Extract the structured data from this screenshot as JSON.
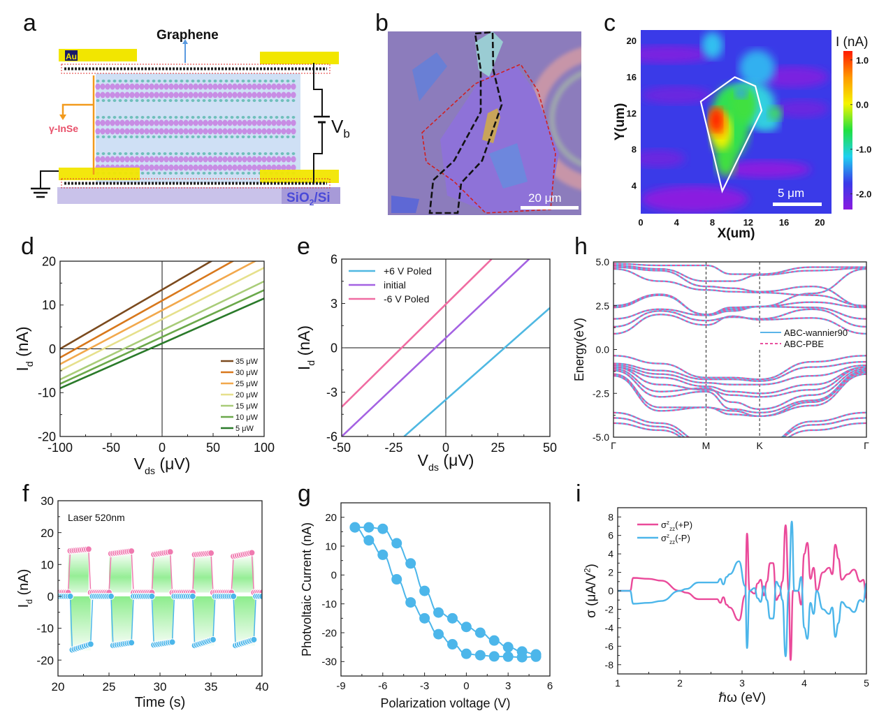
{
  "panel_letters": {
    "a": "a",
    "b": "b",
    "c": "c",
    "d": "d",
    "e": "e",
    "f": "f",
    "g": "g",
    "h": "h",
    "i": "i"
  },
  "panel_a": {
    "graphene_label": "Graphene",
    "au_label": "Au",
    "inse_label": "γ-InSe",
    "vb_label": {
      "main": "V",
      "sub": "b"
    },
    "substrate_label": {
      "a": "SiO",
      "sub": "2",
      "b": "/Si"
    },
    "colors": {
      "gold": "#f2e600",
      "crystal": "#cfe0f5",
      "in_atom": "#c77ee0",
      "se_atom": "#5fb8b0",
      "substrate": "#c9c2ea",
      "arrow_orange": "#f29a1c",
      "inse_text": "#e8506a"
    }
  },
  "panel_b": {
    "scale_bar_label": "20 μm",
    "colors": {
      "substrate": "#8c7cbc",
      "flake": "#8f72d6",
      "outline_red": "#d02020",
      "outline_black": "#111111"
    }
  },
  "chart_data": [
    {
      "id": "c",
      "type": "heatmap",
      "xlabel": "X(um)",
      "ylabel": "Y(um)",
      "xlim": [
        0,
        21.3
      ],
      "ylim": [
        0.9,
        21.2
      ],
      "xticks": [
        0,
        4,
        8,
        12,
        16,
        20
      ],
      "yticks": [
        4,
        8,
        12,
        16,
        20
      ],
      "colorbar": {
        "title": "I (nA)",
        "range": [
          -2.35,
          1.2
        ],
        "ticks": [
          1.0,
          0.0,
          -1.0,
          -2.0
        ],
        "colors": [
          "#ff1a00",
          "#ff9a00",
          "#f5f500",
          "#20e040",
          "#20d0f0",
          "#3a3ae8",
          "#8a1ae0"
        ]
      },
      "outline_um": [
        [
          6.7,
          13.3
        ],
        [
          10.5,
          16
        ],
        [
          12.8,
          15
        ],
        [
          13.5,
          12.3
        ],
        [
          9.1,
          3.4
        ]
      ],
      "scale_bar_label": "5 μm"
    },
    {
      "id": "d",
      "type": "line",
      "xlabel": [
        {
          "t": "V"
        },
        {
          "t": "ds",
          "sub": true
        },
        {
          "t": " (μV)"
        }
      ],
      "ylabel": [
        {
          "t": "I"
        },
        {
          "t": "d",
          "sub": true
        },
        {
          "t": " (nA)"
        }
      ],
      "xlim": [
        -100,
        100
      ],
      "ylim": [
        -20,
        20
      ],
      "xticks": [
        -100,
        -50,
        0,
        50,
        100
      ],
      "yticks": [
        -20,
        -10,
        0,
        10,
        20
      ],
      "legend_position": "bottom-right",
      "series": [
        {
          "name": "35 μW",
          "color": "#7b4a1e",
          "x": [
            -100,
            100
          ],
          "y": [
            0,
            27
          ]
        },
        {
          "name": "30 μW",
          "color": "#d8781c",
          "x": [
            -100,
            100
          ],
          "y": [
            -2,
            24
          ]
        },
        {
          "name": "25 μW",
          "color": "#f2a84c",
          "x": [
            -100,
            100
          ],
          "y": [
            -3.5,
            21.1
          ]
        },
        {
          "name": "20 μW",
          "color": "#e6e08c",
          "x": [
            -100,
            100
          ],
          "y": [
            -5,
            18.5
          ]
        },
        {
          "name": "15 μW",
          "color": "#a8cc78",
          "x": [
            -100,
            100
          ],
          "y": [
            -7,
            15.4
          ]
        },
        {
          "name": "10  μW",
          "color": "#6aa84a",
          "x": [
            -100,
            100
          ],
          "y": [
            -8,
            13.4
          ]
        },
        {
          "name": "5  μW",
          "color": "#2a7a2a",
          "x": [
            -100,
            100
          ],
          "y": [
            -9,
            11.5
          ]
        }
      ]
    },
    {
      "id": "e",
      "type": "line",
      "xlabel": [
        {
          "t": "V"
        },
        {
          "t": "ds",
          "sub": true
        },
        {
          "t": " (μV)"
        }
      ],
      "ylabel": [
        {
          "t": "I"
        },
        {
          "t": "d",
          "sub": true
        },
        {
          "t": " (nA)"
        }
      ],
      "xlim": [
        -50,
        50
      ],
      "ylim": [
        -6,
        6
      ],
      "xticks": [
        -50,
        -25,
        0,
        25,
        50
      ],
      "yticks": [
        -6,
        -3,
        0,
        3,
        6
      ],
      "legend_position": "top-left",
      "series": [
        {
          "name": "+6 V Poled",
          "color": "#4fb8e2",
          "x": [
            -20,
            50
          ],
          "y": [
            -6,
            2.7
          ]
        },
        {
          "name": "initial",
          "color": "#a462e2",
          "x": [
            -50,
            40
          ],
          "y": [
            -6,
            6
          ]
        },
        {
          "name": "-6 V Poled",
          "color": "#f06ca2",
          "x": [
            -50,
            22
          ],
          "y": [
            -4,
            6
          ]
        }
      ]
    },
    {
      "id": "h",
      "type": "line",
      "ylabel": [
        {
          "t": "Energy(eV)"
        }
      ],
      "xlim": [
        0,
        1.577
      ],
      "ylim": [
        -5,
        5
      ],
      "yticks": [
        -5,
        -2.5,
        0,
        2.5,
        5
      ],
      "kpoints": [
        {
          "label": "Γ",
          "k": 0
        },
        {
          "label": "M",
          "k": 0.577
        },
        {
          "label": "K",
          "k": 0.911
        },
        {
          "label": "Γ",
          "k": 1.577
        }
      ],
      "legend_position": "center-right",
      "legend": [
        {
          "name": "ABC-wannier90",
          "color": "#5ab4e8",
          "style": "solid"
        },
        {
          "name": "ABC-PBE",
          "color": "#e8509e",
          "style": "dashed"
        }
      ],
      "k": [
        0,
        0.29,
        0.577,
        0.74,
        0.911,
        1.24,
        1.577
      ],
      "bands": [
        [
          0.9,
          2.0,
          1.4,
          1.9,
          1.7,
          1.8,
          0.9
        ],
        [
          1.3,
          2.2,
          1.65,
          1.85,
          1.75,
          2.3,
          1.3
        ],
        [
          1.75,
          2.3,
          1.95,
          2.2,
          2.45,
          2.4,
          1.75
        ],
        [
          2.4,
          3.1,
          2.0,
          2.3,
          2.45,
          2.7,
          2.4
        ],
        [
          2.5,
          3.15,
          2.0,
          2.4,
          2.45,
          3.2,
          4.6
        ],
        [
          4.6,
          3.9,
          3.4,
          3.3,
          3.25,
          3.1,
          2.5
        ],
        [
          4.7,
          4.5,
          3.6,
          3.5,
          3.3,
          3.6,
          2.45
        ],
        [
          4.8,
          4.6,
          3.9,
          3.9,
          4.25,
          4.5,
          4.65
        ],
        [
          4.9,
          4.8,
          4.8,
          4.3,
          4.3,
          4.7,
          4.7
        ],
        [
          -0.35,
          -0.8,
          -1.6,
          -1.6,
          -1.7,
          -0.7,
          -0.35
        ],
        [
          -0.8,
          -1.2,
          -1.7,
          -1.7,
          -1.8,
          -1.0,
          -0.7
        ],
        [
          -0.9,
          -1.4,
          -1.9,
          -2.0,
          -2.0,
          -1.5,
          -0.9
        ],
        [
          -1.0,
          -1.6,
          -2.1,
          -2.4,
          -2.5,
          -2.0,
          -1.0
        ],
        [
          -1.0,
          -2.0,
          -2.3,
          -2.6,
          -2.7,
          -2.3,
          -1.0
        ],
        [
          -1.1,
          -2.4,
          -2.2,
          -3.0,
          -3.4,
          -2.6,
          -1.1
        ],
        [
          -1.2,
          -2.7,
          -2.4,
          -3.4,
          -3.6,
          -2.9,
          -1.2
        ],
        [
          -1.4,
          -3.3,
          -3.3,
          -3.5,
          -3.8,
          -3.0,
          -1.3
        ],
        [
          -1.5,
          -3.5,
          -3.3,
          -3.7,
          -3.8,
          -3.2,
          -1.4
        ],
        [
          -3.6,
          -4.2,
          -5.3,
          -5.5,
          -5.5,
          -4.1,
          -3.6
        ],
        [
          -3.9,
          -4.4,
          -5.5,
          -5.5,
          -5.5,
          -4.3,
          -3.9
        ],
        [
          -4.2,
          -4.6,
          -5.6,
          -5.6,
          -5.6,
          -4.6,
          -4.2
        ]
      ]
    },
    {
      "id": "f",
      "type": "scatter",
      "xlabel": [
        {
          "t": "Time (s)"
        }
      ],
      "ylabel": [
        {
          "t": "I"
        },
        {
          "t": "d",
          "sub": true
        },
        {
          "t": " (nA)"
        }
      ],
      "xlim": [
        20,
        40
      ],
      "ylim": [
        -25,
        30
      ],
      "xticks": [
        20,
        25,
        30,
        35,
        40
      ],
      "yticks": [
        -20,
        -10,
        0,
        10,
        20,
        30
      ],
      "annotation": "Laser 520nm",
      "fill_color": "#40e040",
      "series": [
        {
          "color": "#f07ab0",
          "off_value": 1.2,
          "on_intervals": [
            [
              21,
              23
            ],
            [
              25,
              27.2
            ],
            [
              29.2,
              31.1
            ],
            [
              33.2,
              35.1
            ],
            [
              37.1,
              39.2
            ]
          ],
          "on_values": [
            [
              14.2,
              14.8
            ],
            [
              13.3,
              14.2
            ],
            [
              13,
              14
            ],
            [
              13,
              13.6
            ],
            [
              12.5,
              13.8
            ]
          ]
        },
        {
          "color": "#4cb6ea",
          "off_value": 0,
          "on_intervals": [
            [
              21.2,
              23.2
            ],
            [
              25.2,
              27.3
            ],
            [
              29.3,
              31.3
            ],
            [
              33.3,
              35.3
            ],
            [
              37.3,
              39.3
            ]
          ],
          "on_values": [
            [
              -17,
              -15
            ],
            [
              -15.5,
              -14.5
            ],
            [
              -15.3,
              -14.3
            ],
            [
              -15.5,
              -13.5
            ],
            [
              -15.5,
              -13.5
            ]
          ]
        }
      ]
    },
    {
      "id": "g",
      "type": "line",
      "xlabel": [
        {
          "t": "Polarization voltage (V)"
        }
      ],
      "ylabel": [
        {
          "t": "Photvoltaic Current (nA)"
        }
      ],
      "xlim": [
        -9,
        6
      ],
      "ylim": [
        -35,
        25
      ],
      "xticks": [
        -9,
        -6,
        -3,
        0,
        3,
        6
      ],
      "yticks": [
        -30,
        -20,
        -10,
        0,
        10,
        20
      ],
      "series": [
        {
          "color": "#4cb6ea",
          "x": [
            -8,
            -7,
            -6,
            -5,
            -4,
            -3,
            -2,
            -1,
            0,
            1,
            2,
            3,
            4,
            5
          ],
          "y": [
            16.5,
            16.5,
            16,
            11,
            4,
            -5.5,
            -13,
            -15,
            -18,
            -20,
            -22.7,
            -25,
            -26.5,
            -27.5
          ]
        },
        {
          "color": "#4cb6ea",
          "x": [
            -8,
            -7,
            -6,
            -5,
            -4,
            -3,
            -2,
            -1,
            0,
            1,
            2,
            3,
            4,
            5
          ],
          "y": [
            16.5,
            12,
            7,
            -1.5,
            -9.5,
            -15,
            -20.5,
            -24,
            -27.3,
            -27.8,
            -28.2,
            -28.3,
            -28.5,
            -28.3
          ]
        }
      ]
    },
    {
      "id": "i",
      "type": "line",
      "xlabel": [
        {
          "t": "ℏω (eV)"
        }
      ],
      "ylabel": [
        {
          "t": "σ (μA/V"
        },
        {
          "t": "2",
          "sup": true
        },
        {
          "t": ")"
        }
      ],
      "xlim": [
        1,
        5
      ],
      "ylim": [
        -9,
        9
      ],
      "xticks": [
        1,
        2,
        3,
        4,
        5
      ],
      "yticks": [
        -8,
        -6,
        -4,
        -2,
        0,
        2,
        4,
        6,
        8
      ],
      "legend_position": "top-left",
      "series": [
        {
          "name": [
            {
              "t": "σ"
            },
            {
              "t": "z",
              "sup": true
            },
            {
              "t": "zz",
              "sub": true
            },
            {
              "t": "(+P)"
            }
          ],
          "color": "#ea4a9a",
          "x": [
            1,
            1.2,
            1.25,
            1.5,
            1.7,
            2.0,
            2.1,
            2.3,
            2.6,
            2.65,
            2.7,
            2.75,
            2.8,
            2.95,
            3.05,
            3.08,
            3.12,
            3.2,
            3.25,
            3.3,
            3.35,
            3.4,
            3.45,
            3.5,
            3.55,
            3.6,
            3.65,
            3.7,
            3.75,
            3.78,
            3.82,
            3.9,
            3.95,
            4.0,
            4.05,
            4.1,
            4.15,
            4.2,
            4.3,
            4.4,
            4.45,
            4.5,
            4.55,
            4.6,
            4.7,
            4.8,
            4.9,
            4.95,
            5.0
          ],
          "y": [
            0,
            0,
            1.4,
            1.3,
            1.1,
            0,
            -0.2,
            -0.9,
            -0.9,
            -1.3,
            -0.7,
            -1.5,
            -1.8,
            -3.2,
            -0.5,
            6.2,
            0,
            -0.3,
            0.8,
            1.2,
            -0.5,
            1,
            3,
            3,
            -1,
            -0.5,
            1,
            7.1,
            0,
            -7.5,
            0,
            0,
            -1.5,
            4,
            5.2,
            1.3,
            2.5,
            0,
            2,
            2.5,
            1.8,
            5,
            3.5,
            1.2,
            1.8,
            2.3,
            1,
            1.2,
            -0.8
          ]
        },
        {
          "name": [
            {
              "t": "σ"
            },
            {
              "t": "z",
              "sup": true
            },
            {
              "t": "zz",
              "sub": true
            },
            {
              "t": "(-P)"
            }
          ],
          "color": "#4cb6ea",
          "x": [
            1,
            1.2,
            1.25,
            1.5,
            1.7,
            2.0,
            2.1,
            2.3,
            2.6,
            2.65,
            2.7,
            2.75,
            2.8,
            2.95,
            3.05,
            3.08,
            3.12,
            3.2,
            3.25,
            3.3,
            3.35,
            3.4,
            3.45,
            3.5,
            3.55,
            3.6,
            3.65,
            3.7,
            3.75,
            3.8,
            3.84,
            3.9,
            3.95,
            4.0,
            4.05,
            4.1,
            4.15,
            4.2,
            4.3,
            4.4,
            4.45,
            4.5,
            4.55,
            4.6,
            4.7,
            4.8,
            4.9,
            4.95,
            5.0
          ],
          "y": [
            0,
            0,
            -1.4,
            -1.3,
            -1.1,
            0,
            0.2,
            0.9,
            0.9,
            1.3,
            0.7,
            1.5,
            1.8,
            3.2,
            0.5,
            -6.2,
            0,
            0.3,
            -0.8,
            -1.2,
            0.5,
            -1,
            -3,
            -3,
            1,
            0.5,
            -1,
            -7.1,
            0,
            7.5,
            0,
            0,
            1.5,
            -4,
            -5.2,
            -1.3,
            -2.5,
            0,
            -2,
            -2.5,
            -1.8,
            -5,
            -3.5,
            -1.2,
            -1.8,
            -2.3,
            -1,
            -1.2,
            0.8
          ]
        }
      ]
    }
  ]
}
